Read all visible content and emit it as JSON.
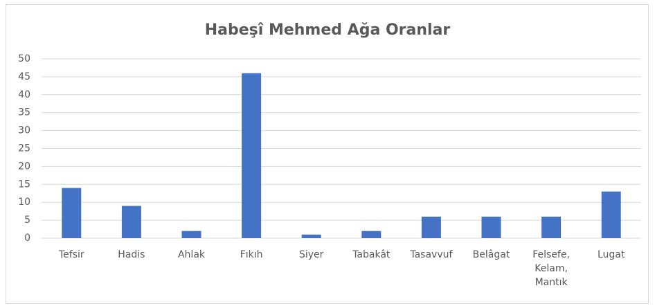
{
  "chart_data": {
    "type": "bar",
    "title": "Habeşî Mehmed Ağa Oranlar",
    "categories": [
      "Tefsir",
      "Hadis",
      "Ahlak",
      "Fıkıh",
      "Siyer",
      "Tabakât",
      "Tasavvuf",
      "Belâgat",
      "Felsefe, Kelam, Mantık",
      "Lugat"
    ],
    "values": [
      14,
      9,
      2,
      46,
      1,
      2,
      6,
      6,
      6,
      13
    ],
    "color": "#4472c4",
    "ylim": [
      0,
      50
    ],
    "yticks": [
      0,
      5,
      10,
      15,
      20,
      25,
      30,
      35,
      40,
      45,
      50
    ],
    "grid": true
  }
}
